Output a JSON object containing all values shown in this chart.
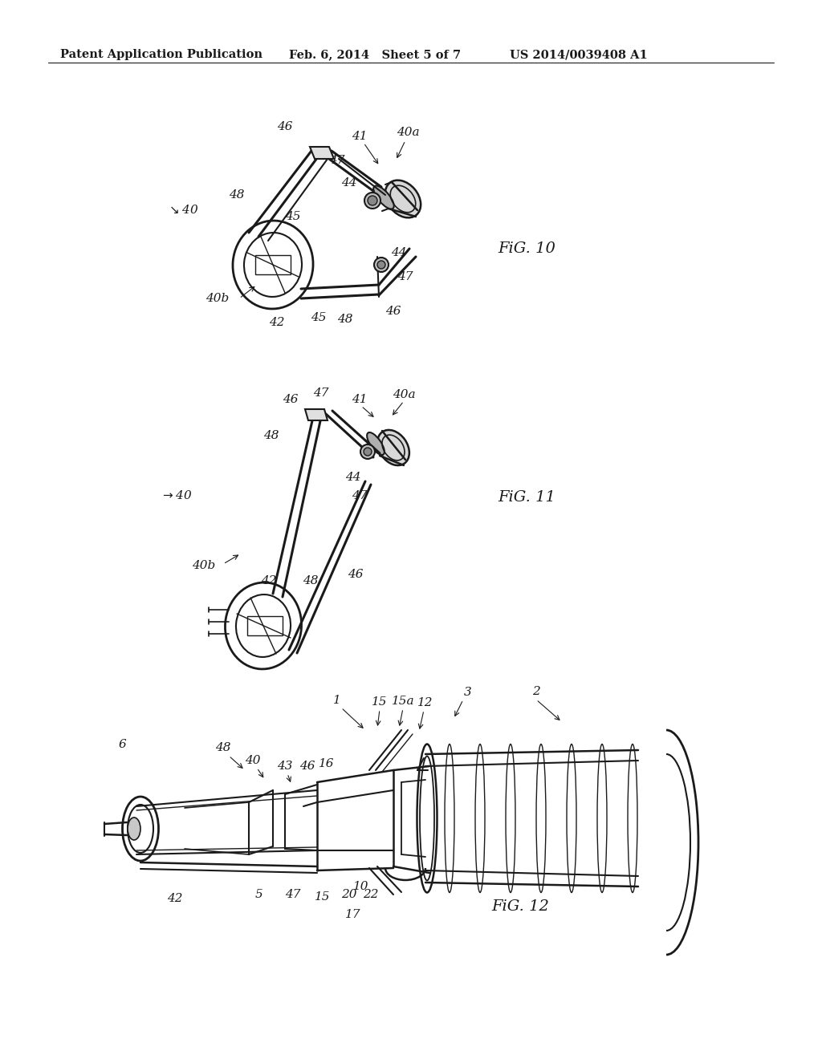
{
  "header_left": "Patent Application Publication",
  "header_mid": "Feb. 6, 2014   Sheet 5 of 7",
  "header_right": "US 2014/0039408 A1",
  "fig10_label": "FiG. 10",
  "fig11_label": "FiG. 11",
  "fig12_label": "FiG. 12",
  "background_color": "#ffffff",
  "line_color": "#1a1a1a",
  "header_font_size": 10.5,
  "label_font_size": 11,
  "fig_label_font_size": 14
}
